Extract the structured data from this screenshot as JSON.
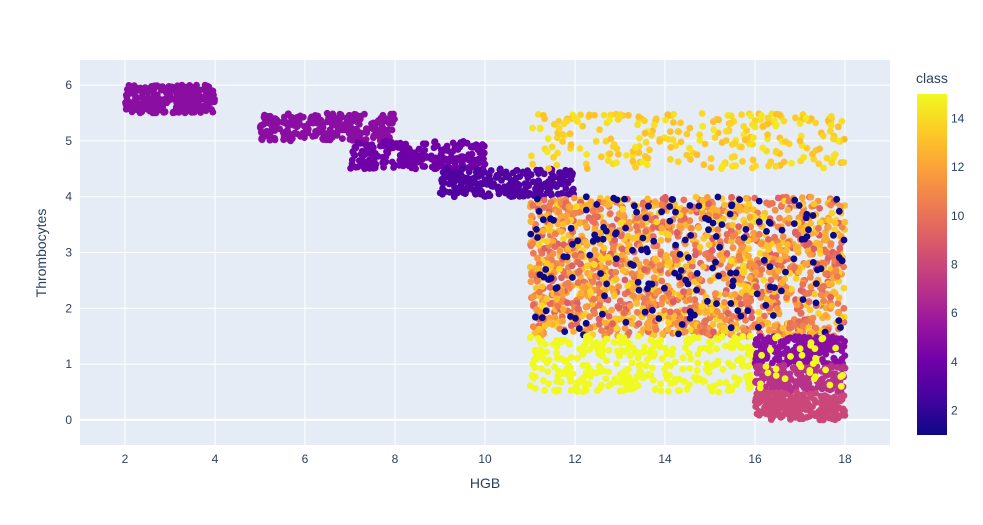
{
  "chart_data": {
    "type": "scatter",
    "xlabel": "HGB",
    "ylabel": "Thrombocytes",
    "xlim": [
      1,
      19
    ],
    "ylim": [
      -0.45,
      6.45
    ],
    "xticks": [
      2,
      4,
      6,
      8,
      10,
      12,
      14,
      16,
      18
    ],
    "yticks": [
      0,
      1,
      2,
      3,
      4,
      5,
      6
    ],
    "grid": true,
    "colorbar": {
      "title": "class",
      "range": [
        1,
        15
      ],
      "ticks": [
        2,
        4,
        6,
        8,
        10,
        12,
        14
      ],
      "colorscale": [
        "#0d0887",
        "#46039f",
        "#7201a8",
        "#9c179e",
        "#bd3786",
        "#d8576b",
        "#ed7953",
        "#fb9f3a",
        "#fdca26",
        "#f0f921"
      ]
    },
    "clusters": [
      {
        "x": [
          2,
          4
        ],
        "y": [
          5.5,
          6.0
        ],
        "class": 5,
        "count": 280
      },
      {
        "x": [
          5,
          8
        ],
        "y": [
          5.0,
          5.5
        ],
        "class": 5,
        "count": 260
      },
      {
        "x": [
          7,
          10
        ],
        "y": [
          4.5,
          5.0
        ],
        "class": 4,
        "count": 240
      },
      {
        "x": [
          9,
          12
        ],
        "y": [
          4.0,
          4.5
        ],
        "class": 3,
        "count": 240
      },
      {
        "x": [
          11,
          18
        ],
        "y": [
          4.5,
          5.5
        ],
        "class": 14,
        "count": 260
      },
      {
        "x": [
          11,
          18
        ],
        "y": [
          1.5,
          4.0
        ],
        "class": 12,
        "count": 1700
      },
      {
        "x": [
          11,
          18
        ],
        "y": [
          1.5,
          4.0
        ],
        "class": 1,
        "count": 170
      },
      {
        "x": [
          11,
          16
        ],
        "y": [
          0.5,
          1.5
        ],
        "class": 15,
        "count": 320
      },
      {
        "x": [
          16,
          18
        ],
        "y": [
          1.0,
          1.5
        ],
        "class": 5,
        "count": 200
      },
      {
        "x": [
          16,
          18
        ],
        "y": [
          0.5,
          1.0
        ],
        "class": 7,
        "count": 180
      },
      {
        "x": [
          16,
          18
        ],
        "y": [
          0.0,
          0.5
        ],
        "class": 8,
        "count": 220
      },
      {
        "x": [
          16,
          18
        ],
        "y": [
          0.5,
          1.5
        ],
        "class": 15,
        "count": 35
      }
    ]
  }
}
